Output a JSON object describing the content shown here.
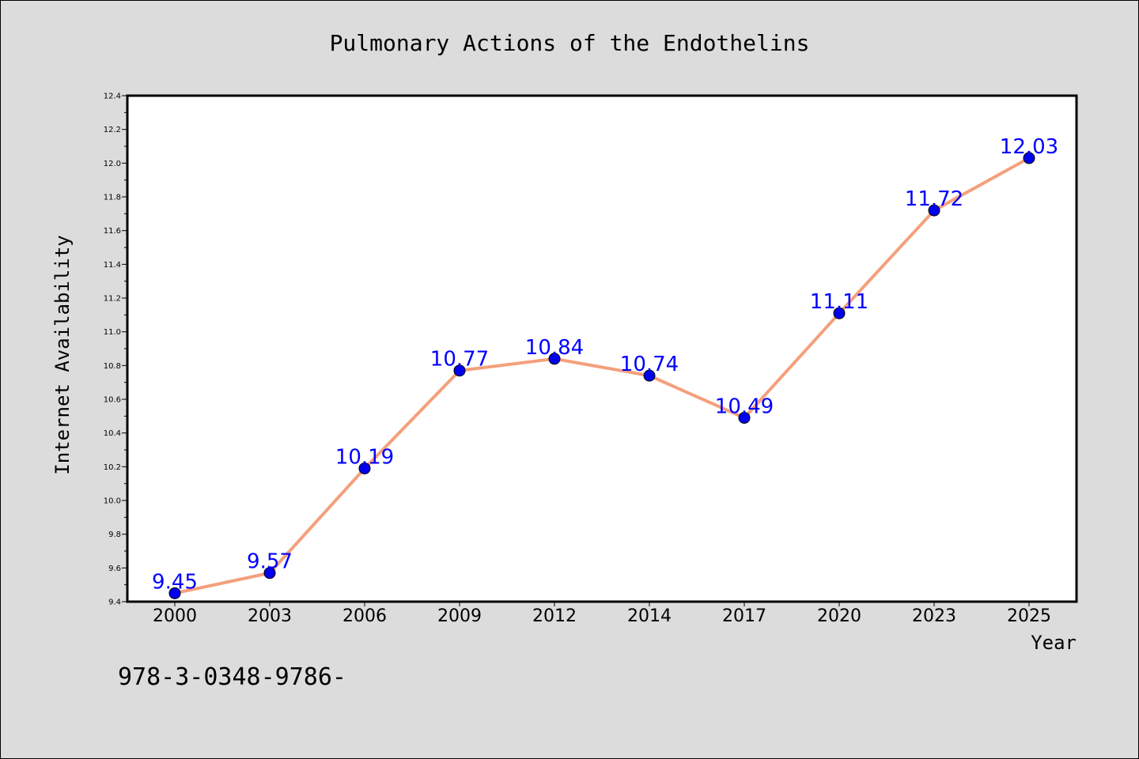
{
  "figure": {
    "footer_text": "978-3-0348-9786-"
  },
  "chart_data": {
    "type": "line",
    "title": "Pulmonary Actions of the Endothelins",
    "xlabel": "Year",
    "ylabel": "Internet Availability",
    "categories": [
      "2000",
      "2003",
      "2006",
      "2009",
      "2012",
      "2014",
      "2017",
      "2020",
      "2023",
      "2025"
    ],
    "series": [
      {
        "values": [
          9.45,
          9.57,
          10.19,
          10.77,
          10.84,
          10.74,
          10.49,
          11.11,
          11.72,
          12.03
        ],
        "labels": [
          "9.45",
          "9.57",
          "10.19",
          "10.77",
          "10.84",
          "10.74",
          "10.49",
          "11.11",
          "11.72",
          "12.03"
        ],
        "line_color": "#f4a07c",
        "marker_color": "#0000ee",
        "label_color": "#0000ff"
      }
    ],
    "ylim": [
      9.4,
      12.4
    ],
    "yticks": [
      "9.4",
      "9.6",
      "9.8",
      "10.0",
      "10.2",
      "10.4",
      "10.6",
      "10.8",
      "11.0",
      "11.2",
      "11.4",
      "11.6",
      "11.8",
      "12.0",
      "12.2",
      "12.4"
    ],
    "grid": false,
    "legend": "none",
    "plot_background": "#ffffff",
    "figure_background": "#dcdcdc"
  }
}
